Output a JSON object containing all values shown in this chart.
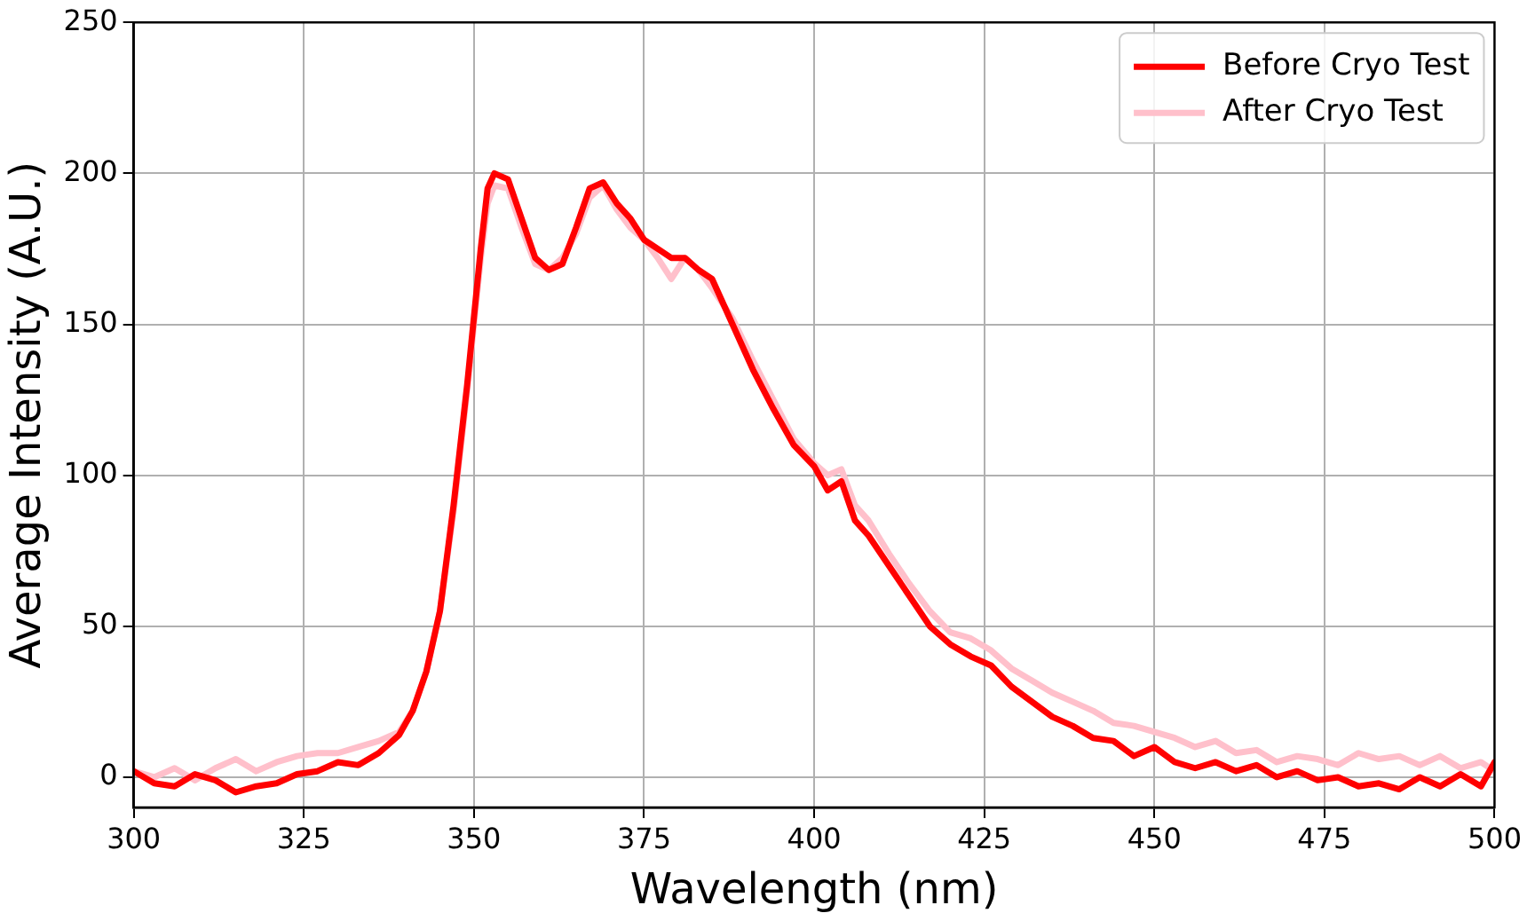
{
  "chart_data": {
    "type": "line",
    "xlabel": "Wavelength (nm)",
    "ylabel": "Average Intensity (A.U.)",
    "xlim": [
      300,
      500
    ],
    "xticks": [
      300,
      325,
      350,
      375,
      400,
      425,
      450,
      475,
      500
    ],
    "ylim": [
      -10,
      250
    ],
    "yticks": [
      0,
      50,
      100,
      150,
      200,
      250
    ],
    "grid": true,
    "legend": "top right",
    "line_style": "solid",
    "marker": "none",
    "series": [
      {
        "name": "Before Cryo Test",
        "color": "#ff0000",
        "x": [
          300,
          303,
          306,
          309,
          312,
          315,
          318,
          321,
          324,
          327,
          330,
          333,
          336,
          339,
          341,
          343,
          345,
          347,
          349,
          351,
          352,
          353,
          355,
          357,
          359,
          361,
          363,
          365,
          367,
          369,
          371,
          373,
          375,
          377,
          379,
          381,
          383,
          385,
          388,
          391,
          394,
          397,
          400,
          402,
          404,
          406,
          408,
          411,
          414,
          417,
          420,
          423,
          426,
          429,
          432,
          435,
          438,
          441,
          444,
          447,
          450,
          453,
          456,
          459,
          462,
          465,
          468,
          471,
          474,
          477,
          480,
          483,
          486,
          489,
          492,
          495,
          498,
          500
        ],
        "values": [
          2,
          -2,
          -3,
          1,
          -1,
          -5,
          -3,
          -2,
          1,
          2,
          5,
          4,
          8,
          14,
          22,
          35,
          55,
          90,
          130,
          175,
          195,
          200,
          198,
          185,
          172,
          168,
          170,
          182,
          195,
          197,
          190,
          185,
          178,
          175,
          172,
          172,
          168,
          165,
          150,
          135,
          122,
          110,
          103,
          95,
          98,
          85,
          80,
          70,
          60,
          50,
          44,
          40,
          37,
          30,
          25,
          20,
          17,
          13,
          12,
          7,
          10,
          5,
          3,
          5,
          2,
          4,
          0,
          2,
          -1,
          0,
          -3,
          -2,
          -4,
          0,
          -3,
          1,
          -3,
          5
        ]
      },
      {
        "name": "After Cryo Test",
        "color": "#ffc0cb",
        "x": [
          300,
          303,
          306,
          309,
          312,
          315,
          318,
          321,
          324,
          327,
          330,
          333,
          336,
          339,
          341,
          343,
          345,
          347,
          349,
          351,
          352,
          353,
          355,
          357,
          359,
          361,
          363,
          365,
          367,
          369,
          371,
          373,
          375,
          377,
          379,
          381,
          383,
          385,
          388,
          391,
          394,
          397,
          400,
          402,
          404,
          406,
          408,
          411,
          414,
          417,
          420,
          423,
          426,
          429,
          432,
          435,
          438,
          441,
          444,
          447,
          450,
          453,
          456,
          459,
          462,
          465,
          468,
          471,
          474,
          477,
          480,
          483,
          486,
          489,
          492,
          495,
          498,
          500
        ],
        "values": [
          2,
          0,
          3,
          -1,
          3,
          6,
          2,
          5,
          7,
          8,
          8,
          10,
          12,
          15,
          22,
          35,
          55,
          88,
          128,
          172,
          190,
          196,
          195,
          182,
          170,
          168,
          172,
          180,
          192,
          196,
          188,
          182,
          178,
          172,
          165,
          172,
          168,
          162,
          152,
          138,
          125,
          112,
          104,
          100,
          102,
          90,
          85,
          74,
          64,
          55,
          48,
          46,
          42,
          36,
          32,
          28,
          25,
          22,
          18,
          17,
          15,
          13,
          10,
          12,
          8,
          9,
          5,
          7,
          6,
          4,
          8,
          6,
          7,
          4,
          7,
          3,
          5,
          2
        ]
      }
    ]
  }
}
